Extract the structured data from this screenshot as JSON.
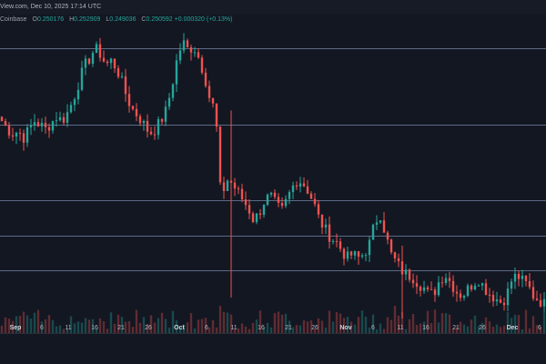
{
  "header": {
    "title": "View.com, Dec 10, 2025 17:14 UTC",
    "exchange": "Coinbase",
    "open_label": "O",
    "open": "0.250176",
    "high_label": "H",
    "high": "0.252909",
    "low_label": "L",
    "low": "0.249036",
    "close_label": "C",
    "close": "0.250592",
    "change": "+0.000320 (+0.13%)"
  },
  "colors": {
    "background": "#131722",
    "up": "#26a69a",
    "down": "#ef5350",
    "grid": "#5b6a85",
    "text": "#b2b5be"
  },
  "chart_data": {
    "type": "candlestick",
    "x_tick_labels": [
      "Sep",
      "6",
      "11",
      "16",
      "21",
      "26",
      "Oct",
      "6",
      "11",
      "16",
      "21",
      "26",
      "Nov",
      "6",
      "11",
      "16",
      "21",
      "26",
      "Dec",
      "6"
    ],
    "bold_tick_labels": [
      "Sep",
      "Oct",
      "Nov",
      "Dec"
    ],
    "series": [
      {
        "name": "price",
        "close_path": [
          0.3,
          0.296,
          0.294,
          0.295,
          0.292,
          0.296,
          0.3,
          0.298,
          0.296,
          0.299,
          0.302,
          0.3,
          0.304,
          0.31,
          0.318,
          0.326,
          0.33,
          0.335,
          0.332,
          0.327,
          0.329,
          0.325,
          0.318,
          0.31,
          0.305,
          0.302,
          0.298,
          0.294,
          0.296,
          0.3,
          0.305,
          0.316,
          0.33,
          0.338,
          0.334,
          0.336,
          0.33,
          0.322,
          0.31,
          0.305,
          0.262,
          0.272,
          0.27,
          0.266,
          0.262,
          0.258,
          0.252,
          0.256,
          0.262,
          0.264,
          0.26,
          0.256,
          0.262,
          0.268,
          0.272,
          0.27,
          0.266,
          0.26,
          0.252,
          0.248,
          0.244,
          0.242,
          0.238,
          0.234,
          0.236,
          0.234,
          0.236,
          0.24,
          0.25,
          0.256,
          0.246,
          0.236,
          0.232,
          0.228,
          0.226,
          0.225,
          0.222,
          0.22,
          0.216,
          0.218,
          0.224,
          0.226,
          0.222,
          0.218,
          0.216,
          0.219,
          0.222,
          0.224,
          0.22,
          0.217,
          0.215,
          0.213,
          0.215,
          0.223,
          0.226,
          0.223,
          0.221,
          0.216,
          0.214,
          0.212
        ],
        "min": 0.205,
        "max": 0.345
      }
    ],
    "horizontal_levels": [
      0.362,
      0.335,
      0.298,
      0.262,
      0.245,
      0.228
    ],
    "grid": true
  }
}
